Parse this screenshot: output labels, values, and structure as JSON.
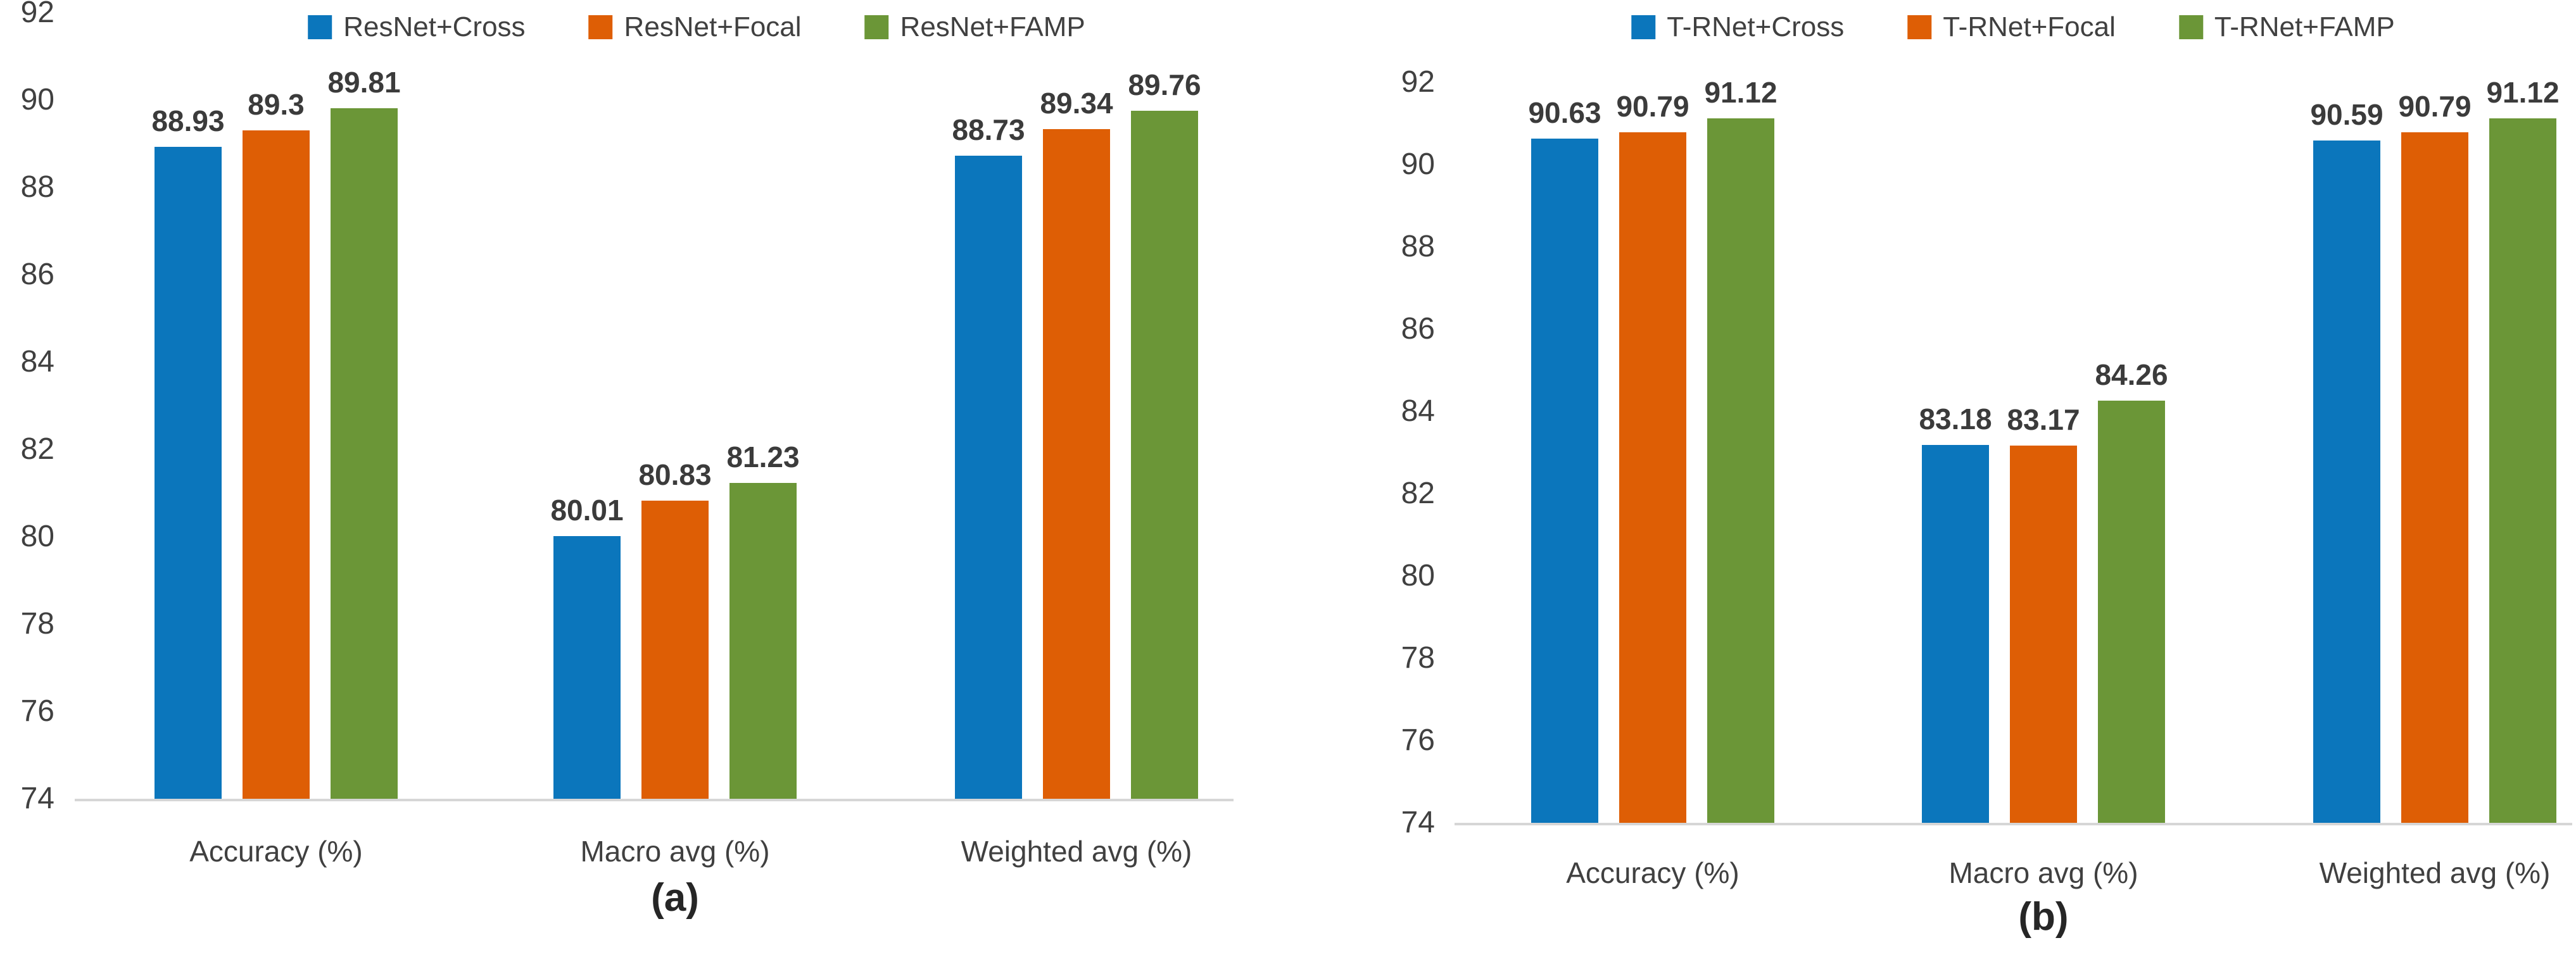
{
  "colors": {
    "series_cross_blue": "#0B76BC",
    "series_focal_orange": "#DE5E05",
    "series_famp_green": "#6B9637",
    "axis_baseline_gray": "#D6D6D6",
    "text_gray": "#404040"
  },
  "chart_data": [
    {
      "type": "bar",
      "caption": "(a)",
      "title": "",
      "xlabel": "",
      "ylabel": "",
      "categories": [
        "Accuracy (%)",
        "Macro avg (%)",
        "Weighted avg (%)"
      ],
      "series": [
        {
          "name": "ResNet+Cross",
          "color": "#0B76BC",
          "values": [
            88.93,
            80.01,
            88.73
          ]
        },
        {
          "name": "ResNet+Focal",
          "color": "#DE5E05",
          "values": [
            89.3,
            80.83,
            89.34
          ]
        },
        {
          "name": "ResNet+FAMP",
          "color": "#6B9637",
          "values": [
            89.81,
            81.23,
            89.76
          ]
        }
      ],
      "ylim": [
        74,
        92
      ],
      "y_ticks": [
        92,
        90,
        88,
        86,
        84,
        82,
        80,
        78,
        76,
        74
      ],
      "legend_position": "top",
      "grid": false
    },
    {
      "type": "bar",
      "caption": "(b)",
      "title": "",
      "xlabel": "",
      "ylabel": "",
      "categories": [
        "Accuracy (%)",
        "Macro avg (%)",
        "Weighted avg (%)"
      ],
      "series": [
        {
          "name": "T-RNet+Cross",
          "color": "#0B76BC",
          "values": [
            90.63,
            83.18,
            90.59
          ]
        },
        {
          "name": "T-RNet+Focal",
          "color": "#DE5E05",
          "values": [
            90.79,
            83.17,
            90.79
          ]
        },
        {
          "name": "T-RNet+FAMP",
          "color": "#6B9637",
          "values": [
            91.12,
            84.26,
            91.12
          ]
        }
      ],
      "ylim": [
        74,
        92
      ],
      "y_ticks": [
        92,
        90,
        88,
        86,
        84,
        82,
        80,
        78,
        76,
        74
      ],
      "legend_position": "top",
      "grid": false
    }
  ]
}
